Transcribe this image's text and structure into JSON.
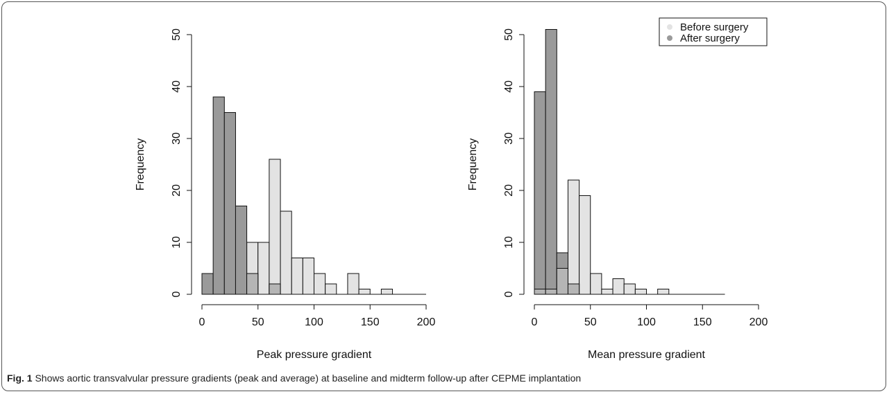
{
  "caption": {
    "label": "Fig. 1",
    "text": "Shows aortic transvalvular pressure gradients (peak and average) at baseline and midterm follow-up after CEPME implantation"
  },
  "colors": {
    "before": "#e3e3e3",
    "after": "#9a9a9a",
    "overlap": "#b5b5b5",
    "stroke": "#111111"
  },
  "chart_data": [
    {
      "type": "bar",
      "subtype": "overlaid-histogram",
      "xlabel": "Peak pressure gradient",
      "ylabel": "Frequency",
      "xlim": [
        0,
        200
      ],
      "ylim": [
        0,
        50
      ],
      "xticks": [
        0,
        50,
        100,
        150,
        200
      ],
      "yticks": [
        0,
        10,
        20,
        30,
        40,
        50
      ],
      "bin_width": 10,
      "series": [
        {
          "name": "Before surgery",
          "bins": [
            [
              40,
              50,
              10
            ],
            [
              50,
              60,
              10
            ],
            [
              60,
              70,
              26
            ],
            [
              70,
              80,
              16
            ],
            [
              80,
              90,
              7
            ],
            [
              90,
              100,
              7
            ],
            [
              100,
              110,
              4
            ],
            [
              110,
              120,
              2
            ],
            [
              130,
              140,
              4
            ],
            [
              140,
              150,
              1
            ],
            [
              160,
              170,
              1
            ]
          ]
        },
        {
          "name": "After surgery",
          "bins": [
            [
              0,
              10,
              4
            ],
            [
              10,
              20,
              38
            ],
            [
              20,
              30,
              35
            ],
            [
              30,
              40,
              17
            ],
            [
              40,
              50,
              4
            ],
            [
              60,
              70,
              2
            ]
          ]
        }
      ],
      "overlap": [
        [
          40,
          50,
          4
        ],
        [
          60,
          70,
          2
        ]
      ],
      "baseline_range": [
        0,
        200
      ]
    },
    {
      "type": "bar",
      "subtype": "overlaid-histogram",
      "xlabel": "Mean pressure gradient",
      "ylabel": "Frequency",
      "xlim": [
        0,
        200
      ],
      "ylim": [
        0,
        50
      ],
      "xticks": [
        0,
        50,
        100,
        150,
        200
      ],
      "yticks": [
        0,
        10,
        20,
        30,
        40,
        50
      ],
      "bin_width": 10,
      "series": [
        {
          "name": "Before surgery",
          "bins": [
            [
              0,
              10,
              1
            ],
            [
              10,
              20,
              1
            ],
            [
              20,
              30,
              5
            ],
            [
              30,
              40,
              22
            ],
            [
              40,
              50,
              19
            ],
            [
              50,
              60,
              4
            ],
            [
              60,
              70,
              1
            ],
            [
              70,
              80,
              3
            ],
            [
              80,
              90,
              2
            ],
            [
              90,
              100,
              1
            ],
            [
              110,
              120,
              1
            ]
          ]
        },
        {
          "name": "After surgery",
          "bins": [
            [
              0,
              10,
              39
            ],
            [
              10,
              20,
              51
            ],
            [
              20,
              30,
              8
            ],
            [
              30,
              40,
              2
            ]
          ]
        }
      ],
      "overlap": [
        [
          0,
          10,
          1
        ],
        [
          10,
          20,
          1
        ],
        [
          20,
          30,
          5
        ],
        [
          30,
          40,
          2
        ]
      ],
      "baseline_range": [
        0,
        170
      ],
      "legend": {
        "placement": "top-right",
        "entries": [
          "Before surgery",
          "After surgery"
        ]
      }
    }
  ]
}
